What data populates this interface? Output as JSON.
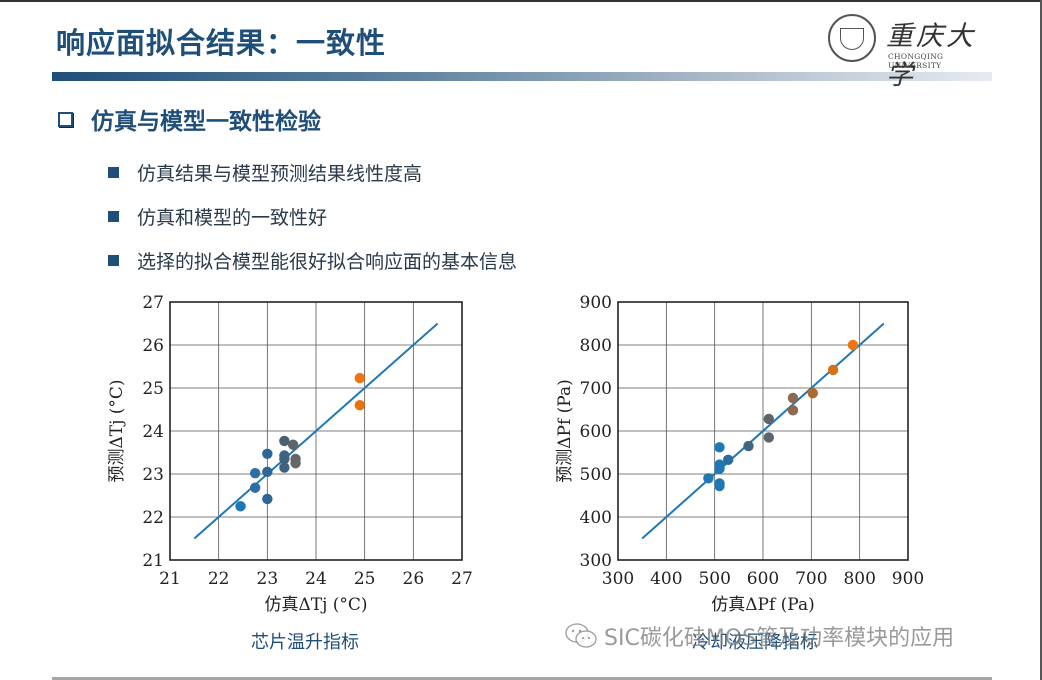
{
  "slide": {
    "title": "响应面拟合结果：一致性",
    "logo": {
      "cn": "重庆大学",
      "en": "CHONGQING UNIVERSITY"
    },
    "section_heading": "仿真与模型一致性检验",
    "bullets": [
      "仿真结果与模型预测结果线性度高",
      "仿真和模型的一致性好",
      "选择的拟合模型能很好拟合响应面的基本信息"
    ],
    "captions": {
      "left": "芯片温升指标",
      "right": "冷却液压降指标"
    },
    "watermark": "SIC碳化硅MOS管及功率模块的应用",
    "colors": {
      "brand_blue": "#1f4e79",
      "line_blue": "#1f77b4",
      "orange": "#ee7511",
      "gray": "#666666"
    }
  },
  "chart_data": [
    {
      "type": "scatter",
      "title": "芯片温升指标",
      "xlabel": "仿真ΔTj (°C)",
      "ylabel": "预测ΔTj (°C)",
      "xlim": [
        21,
        27
      ],
      "ylim": [
        21,
        27
      ],
      "xticks": [
        "21",
        "22",
        "23",
        "24",
        "25",
        "26",
        "27"
      ],
      "yticks": [
        "21",
        "22",
        "23",
        "24",
        "25",
        "26",
        "27"
      ],
      "grid": true,
      "fit_line": {
        "x": [
          21.5,
          26.5
        ],
        "y": [
          21.5,
          26.5
        ]
      },
      "points": [
        {
          "x": 22.45,
          "y": 22.25,
          "color": "#1f77b4"
        },
        {
          "x": 22.75,
          "y": 22.68,
          "color": "#2c6fa6"
        },
        {
          "x": 22.75,
          "y": 23.02,
          "color": "#2c6fa6"
        },
        {
          "x": 23.0,
          "y": 22.42,
          "color": "#2e6695"
        },
        {
          "x": 23.0,
          "y": 23.05,
          "color": "#2e6695"
        },
        {
          "x": 23.0,
          "y": 23.47,
          "color": "#2e6695"
        },
        {
          "x": 23.35,
          "y": 23.15,
          "color": "#40627c"
        },
        {
          "x": 23.35,
          "y": 23.35,
          "color": "#40627c"
        },
        {
          "x": 23.35,
          "y": 23.43,
          "color": "#40627c"
        },
        {
          "x": 23.35,
          "y": 23.77,
          "color": "#486070"
        },
        {
          "x": 23.53,
          "y": 23.68,
          "color": "#5f6468"
        },
        {
          "x": 23.58,
          "y": 23.25,
          "color": "#666666"
        },
        {
          "x": 23.58,
          "y": 23.35,
          "color": "#666666"
        },
        {
          "x": 24.9,
          "y": 24.6,
          "color": "#e8720c"
        },
        {
          "x": 24.9,
          "y": 25.23,
          "color": "#ee7511"
        }
      ]
    },
    {
      "type": "scatter",
      "title": "冷却液压降指标",
      "xlabel": "仿真ΔPf (Pa)",
      "ylabel": "预测ΔPf (Pa)",
      "xlim": [
        300,
        900
      ],
      "ylim": [
        300,
        900
      ],
      "xticks": [
        "300",
        "400",
        "500",
        "600",
        "700",
        "800",
        "900"
      ],
      "yticks": [
        "300",
        "400",
        "500",
        "600",
        "700",
        "800",
        "900"
      ],
      "grid": true,
      "fit_line": {
        "x": [
          350,
          850
        ],
        "y": [
          350,
          850
        ]
      },
      "points": [
        {
          "x": 487,
          "y": 490,
          "color": "#1f77b4"
        },
        {
          "x": 510,
          "y": 472,
          "color": "#1f77b4"
        },
        {
          "x": 510,
          "y": 478,
          "color": "#1f77b4"
        },
        {
          "x": 510,
          "y": 512,
          "color": "#1f77b4"
        },
        {
          "x": 510,
          "y": 522,
          "color": "#1f77b4"
        },
        {
          "x": 510,
          "y": 562,
          "color": "#1f77b4"
        },
        {
          "x": 528,
          "y": 533,
          "color": "#2a6c9e"
        },
        {
          "x": 570,
          "y": 565,
          "color": "#3f6580"
        },
        {
          "x": 612,
          "y": 585,
          "color": "#5a6670"
        },
        {
          "x": 612,
          "y": 628,
          "color": "#5f6468"
        },
        {
          "x": 662,
          "y": 648,
          "color": "#8a6a50"
        },
        {
          "x": 662,
          "y": 677,
          "color": "#8a6a50"
        },
        {
          "x": 703,
          "y": 688,
          "color": "#b06a30"
        },
        {
          "x": 745,
          "y": 742,
          "color": "#d8701a"
        },
        {
          "x": 786,
          "y": 800,
          "color": "#ee7511"
        }
      ]
    }
  ]
}
